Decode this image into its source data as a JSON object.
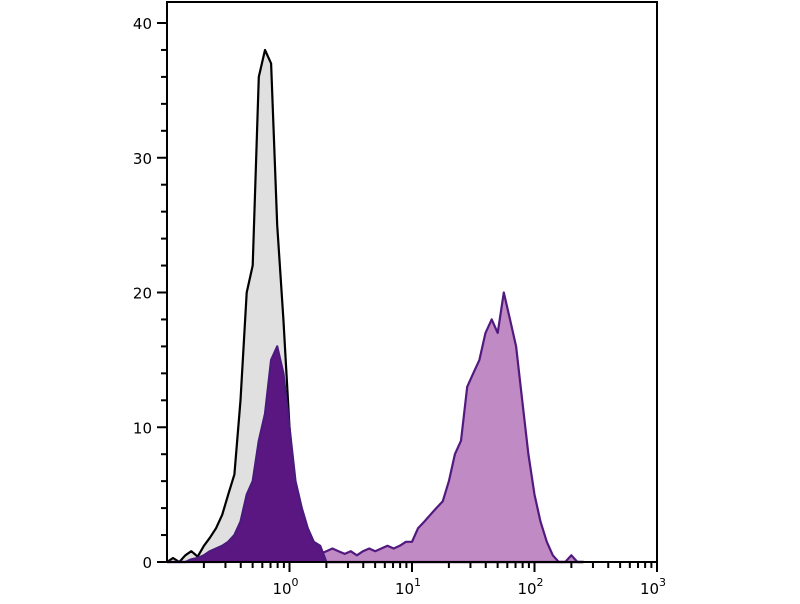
{
  "chart_data": {
    "type": "area",
    "title": "",
    "xlabel": "",
    "ylabel": "",
    "x_scale": "log",
    "xlim": [
      0.1,
      1000
    ],
    "ylim": [
      0,
      40
    ],
    "grid": false,
    "legend": "none",
    "x_ticks": [
      {
        "base": "10",
        "exp": "0",
        "value": 1
      },
      {
        "base": "10",
        "exp": "1",
        "value": 10
      },
      {
        "base": "10",
        "exp": "2",
        "value": 100
      },
      {
        "base": "10",
        "exp": "3",
        "value": 1000
      }
    ],
    "y_ticks": [
      "0",
      "10",
      "20",
      "30",
      "40"
    ],
    "x": [
      0.1,
      0.112,
      0.126,
      0.141,
      0.158,
      0.178,
      0.2,
      0.224,
      0.251,
      0.282,
      0.316,
      0.355,
      0.398,
      0.447,
      0.501,
      0.562,
      0.631,
      0.708,
      0.794,
      0.891,
      1,
      1.12,
      1.26,
      1.41,
      1.58,
      1.78,
      2,
      2.24,
      2.51,
      2.82,
      3.16,
      3.55,
      3.98,
      4.47,
      5.01,
      5.62,
      6.31,
      7.08,
      7.94,
      8.91,
      10,
      11.2,
      12.6,
      14.1,
      15.8,
      17.8,
      20,
      22.4,
      25.1,
      28.2,
      31.6,
      35.5,
      39.8,
      44.7,
      50.1,
      56.2,
      63.1,
      70.8,
      79.4,
      89.1,
      100,
      112,
      126,
      141,
      158,
      178,
      200,
      224,
      251
    ],
    "series": [
      {
        "fill": "#e0e0e0",
        "stroke": "#000000",
        "values": [
          0,
          0.3,
          0,
          0.5,
          0.8,
          0.4,
          1.2,
          1.8,
          2.5,
          3.5,
          5,
          6.5,
          12,
          20,
          22,
          36,
          38,
          37,
          25,
          18,
          10,
          5,
          2.5,
          1.2,
          0.5,
          0.3,
          0,
          0,
          0,
          0,
          0,
          0,
          0,
          0,
          0,
          0,
          0,
          0,
          0,
          0,
          0,
          0,
          0,
          0,
          0,
          0,
          0,
          0,
          0,
          0,
          0,
          0,
          0,
          0,
          0,
          0,
          0,
          0,
          0,
          0,
          0,
          0,
          0,
          0,
          0,
          0,
          0,
          0,
          0
        ]
      },
      {
        "fill": "#c08bc4",
        "stroke": "#52197f",
        "values": [
          0,
          0,
          0,
          0,
          0,
          0,
          0,
          0,
          0,
          0,
          0.3,
          0.5,
          0.5,
          0.8,
          0.8,
          1,
          1,
          1.2,
          1.2,
          1,
          1,
          1,
          0.8,
          0.8,
          1,
          0.6,
          0.8,
          1,
          0.8,
          0.6,
          0.8,
          0.5,
          0.8,
          1,
          0.8,
          1,
          1.2,
          1,
          1.2,
          1.5,
          1.5,
          2.5,
          3,
          3.5,
          4,
          4.5,
          6,
          8,
          9,
          13,
          14,
          15,
          17,
          18,
          17,
          20,
          18,
          16,
          12,
          8,
          5,
          3,
          1.5,
          0.5,
          0,
          0,
          0.5,
          0,
          0
        ]
      },
      {
        "fill": "#5a1782",
        "stroke": "#4b1a7d",
        "values": [
          0,
          0,
          0,
          0,
          0.2,
          0.3,
          0.5,
          0.8,
          1,
          1.2,
          1.5,
          2,
          3,
          5,
          6,
          9,
          11,
          15,
          16,
          14,
          10,
          6,
          4,
          2.5,
          1.5,
          1.2,
          0,
          0,
          0,
          0,
          0,
          0,
          0,
          0,
          0,
          0,
          0,
          0,
          0,
          0,
          0,
          0,
          0,
          0,
          0,
          0,
          0,
          0,
          0,
          0,
          0,
          0,
          0,
          0,
          0,
          0,
          0,
          0,
          0,
          0,
          0,
          0,
          0,
          0,
          0,
          0,
          0,
          0,
          0
        ]
      }
    ]
  }
}
